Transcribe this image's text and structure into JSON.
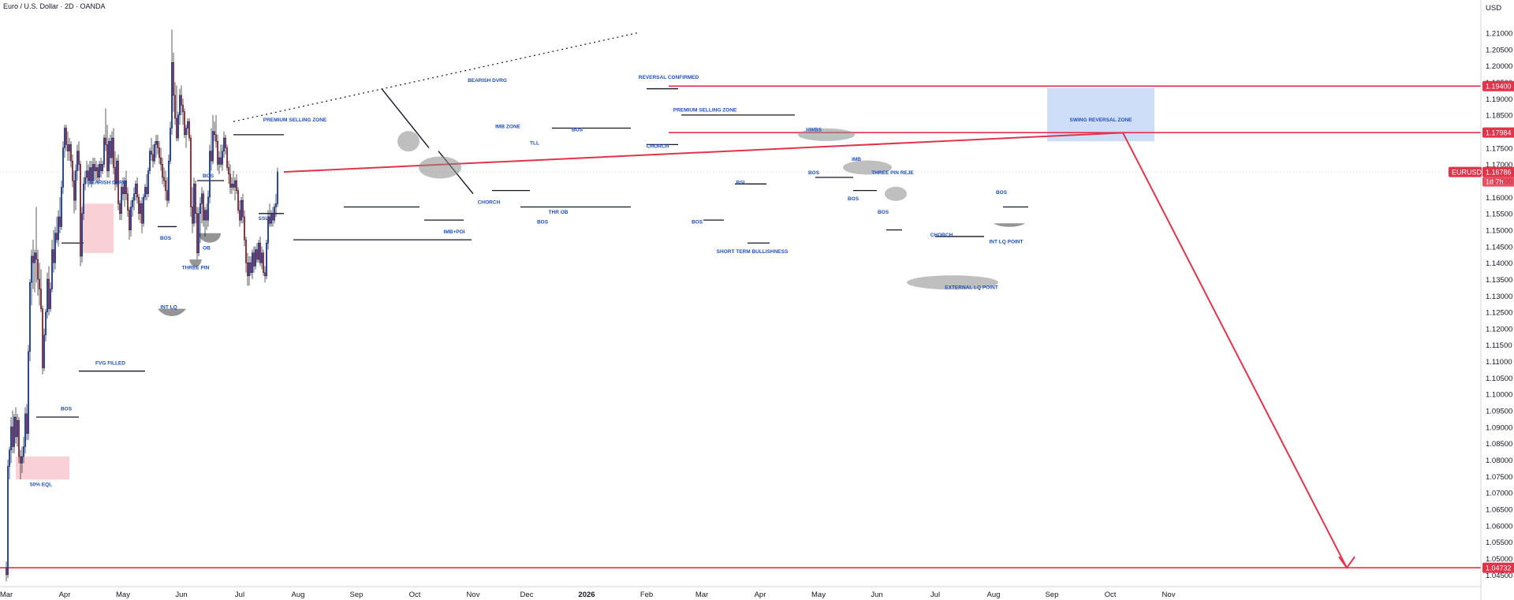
{
  "header": {
    "title": "Euro / U.S. Dollar · 2D · OANDA",
    "currency": "USD"
  },
  "colors": {
    "up": "#2962ff",
    "down": "#e0424f",
    "line": "#e2334a",
    "zone": "#c5d8f8",
    "fvg": "#f8c9cc",
    "text": "#131722",
    "label_blue": "#1e4fc0"
  },
  "chart_data": {
    "type": "candlestick",
    "symbol": "EURUSD",
    "y_ticks": [
      "1.21000",
      "1.20500",
      "1.20000",
      "1.19500",
      "1.19000",
      "1.18500",
      "1.18000",
      "1.17500",
      "1.17000",
      "1.16500",
      "1.16000",
      "1.15500",
      "1.15000",
      "1.14500",
      "1.14000",
      "1.13500",
      "1.13000",
      "1.12500",
      "1.12000",
      "1.11500",
      "1.11000",
      "1.10500",
      "1.10000",
      "1.09500",
      "1.09000",
      "1.08500",
      "1.08000",
      "1.07500",
      "1.07000",
      "1.06500",
      "1.06000",
      "1.05500",
      "1.05000",
      "1.04500"
    ],
    "ylim": [
      1.0435,
      1.2135
    ],
    "x_labels": [
      "Mar",
      "Apr",
      "May",
      "Jun",
      "Jul",
      "Aug",
      "Sep",
      "Oct",
      "Nov",
      "Dec",
      "2026",
      "Feb",
      "Mar",
      "Apr",
      "May",
      "Jun",
      "Jul",
      "Aug",
      "Sep",
      "Oct",
      "Nov"
    ],
    "x_label_index": [
      0,
      37,
      74,
      111,
      148,
      185,
      222,
      259,
      296,
      330,
      368,
      406,
      441,
      478,
      515,
      552,
      589,
      626,
      663,
      700,
      737
    ],
    "price_tags": [
      {
        "text": "1.19400",
        "value": 1.194
      },
      {
        "text": "1.17984",
        "value": 1.17984
      },
      {
        "text": "1.16786",
        "value": 1.16786
      },
      {
        "text": "1.04732",
        "value": 1.04732
      }
    ],
    "symbol_tag": "EURUSD",
    "countdown": "1d 7h",
    "current_price": 1.16786,
    "candles": [
      [
        1.0472,
        1.0492,
        1.0432,
        1.0452
      ],
      [
        1.0452,
        1.0802,
        1.0442,
        1.0782
      ],
      [
        1.0782,
        1.0842,
        1.0742,
        1.0832
      ],
      [
        1.0832,
        1.0932,
        1.0792,
        1.0902
      ],
      [
        1.0902,
        1.0952,
        1.0822,
        1.0842
      ],
      [
        1.0842,
        1.0942,
        1.0822,
        1.0932
      ],
      [
        1.0932,
        1.0962,
        1.0852,
        1.0872
      ],
      [
        1.0872,
        1.0942,
        1.0842,
        1.0922
      ],
      [
        1.0922,
        1.0932,
        1.0792,
        1.0812
      ],
      [
        1.0812,
        1.0832,
        1.0742,
        1.0792
      ],
      [
        1.0792,
        1.0842,
        1.0762,
        1.0812
      ],
      [
        1.0812,
        1.0872,
        1.0792,
        1.0842
      ],
      [
        1.0842,
        1.0962,
        1.0822,
        1.0942
      ],
      [
        1.0942,
        1.0972,
        1.0862,
        1.0882
      ],
      [
        1.0882,
        1.1152,
        1.0862,
        1.1132
      ],
      [
        1.1132,
        1.1352,
        1.1102,
        1.1342
      ],
      [
        1.1342,
        1.1442,
        1.1272,
        1.1422
      ],
      [
        1.1422,
        1.1472,
        1.1322,
        1.1402
      ],
      [
        1.1402,
        1.1442,
        1.1312,
        1.1432
      ],
      [
        1.1432,
        1.1572,
        1.1342,
        1.1412
      ],
      [
        1.1412,
        1.1442,
        1.1302,
        1.1352
      ],
      [
        1.1352,
        1.1402,
        1.1272,
        1.1322
      ],
      [
        1.1322,
        1.1382,
        1.1252,
        1.1262
      ],
      [
        1.1262,
        1.1272,
        1.1062,
        1.1082
      ],
      [
        1.1082,
        1.1202,
        1.1072,
        1.1182
      ],
      [
        1.1182,
        1.1262,
        1.1162,
        1.1252
      ],
      [
        1.1252,
        1.1372,
        1.1232,
        1.1352
      ],
      [
        1.1352,
        1.1392,
        1.1242,
        1.1262
      ],
      [
        1.1262,
        1.1342,
        1.1252,
        1.1322
      ],
      [
        1.1322,
        1.1472,
        1.1312,
        1.1442
      ],
      [
        1.1442,
        1.1502,
        1.1372,
        1.1402
      ],
      [
        1.1402,
        1.1512,
        1.1382,
        1.1492
      ],
      [
        1.1492,
        1.1542,
        1.1462,
        1.1472
      ],
      [
        1.1472,
        1.1562,
        1.1452,
        1.1542
      ],
      [
        1.1542,
        1.1602,
        1.1492,
        1.1512
      ],
      [
        1.1512,
        1.1652,
        1.1502,
        1.1632
      ],
      [
        1.1632,
        1.1772,
        1.1612,
        1.1752
      ],
      [
        1.1752,
        1.1822,
        1.1722,
        1.1812
      ],
      [
        1.1812,
        1.1822,
        1.1742,
        1.1762
      ],
      [
        1.1762,
        1.1802,
        1.1712,
        1.1742
      ],
      [
        1.1742,
        1.1782,
        1.1712,
        1.1762
      ],
      [
        1.1762,
        1.1772,
        1.1692,
        1.1712
      ],
      [
        1.1712,
        1.1732,
        1.1632,
        1.1652
      ],
      [
        1.1652,
        1.1682,
        1.1552,
        1.1592
      ],
      [
        1.1592,
        1.1702,
        1.1562,
        1.1682
      ],
      [
        1.1682,
        1.1762,
        1.1652,
        1.1742
      ],
      [
        1.1742,
        1.1772,
        1.1682,
        1.1702
      ],
      [
        1.1702,
        1.1712,
        1.1392,
        1.1422
      ],
      [
        1.1422,
        1.1572,
        1.1402,
        1.1552
      ],
      [
        1.1552,
        1.1662,
        1.1532,
        1.1642
      ],
      [
        1.1642,
        1.1682,
        1.1622,
        1.1662
      ],
      [
        1.1662,
        1.1712,
        1.1642,
        1.1682
      ],
      [
        1.1682,
        1.1702,
        1.1632,
        1.1652
      ],
      [
        1.1652,
        1.1712,
        1.1642,
        1.1692
      ],
      [
        1.1692,
        1.1712,
        1.1632,
        1.1652
      ],
      [
        1.1652,
        1.1722,
        1.1642,
        1.1702
      ],
      [
        1.1702,
        1.1722,
        1.1652,
        1.1682
      ],
      [
        1.1682,
        1.1712,
        1.1652,
        1.1692
      ],
      [
        1.1692,
        1.1702,
        1.1642,
        1.1662
      ],
      [
        1.1662,
        1.1712,
        1.1652,
        1.1702
      ],
      [
        1.1702,
        1.1722,
        1.1662,
        1.1682
      ],
      [
        1.1682,
        1.1712,
        1.1672,
        1.1702
      ],
      [
        1.1702,
        1.1792,
        1.1692,
        1.1782
      ],
      [
        1.1782,
        1.1872,
        1.1742,
        1.1762
      ],
      [
        1.1762,
        1.1822,
        1.1662,
        1.1682
      ],
      [
        1.1682,
        1.1782,
        1.1662,
        1.1772
      ],
      [
        1.1772,
        1.1792,
        1.1702,
        1.1722
      ],
      [
        1.1722,
        1.1802,
        1.1702,
        1.1782
      ],
      [
        1.1782,
        1.1812,
        1.1672,
        1.1692
      ],
      [
        1.1692,
        1.1742,
        1.1622,
        1.1642
      ],
      [
        1.1642,
        1.1722,
        1.1632,
        1.1712
      ],
      [
        1.1712,
        1.1732,
        1.1562,
        1.1582
      ],
      [
        1.1582,
        1.1592,
        1.1532,
        1.1552
      ],
      [
        1.1552,
        1.1642,
        1.1532,
        1.1632
      ],
      [
        1.1632,
        1.1662,
        1.1592,
        1.1612
      ],
      [
        1.1612,
        1.1662,
        1.1572,
        1.1652
      ],
      [
        1.1652,
        1.1682,
        1.1592,
        1.1612
      ],
      [
        1.1612,
        1.1632,
        1.1542,
        1.1562
      ],
      [
        1.1562,
        1.1572,
        1.1472,
        1.1502
      ],
      [
        1.1502,
        1.1592,
        1.1482,
        1.1572
      ],
      [
        1.1572,
        1.1602,
        1.1542,
        1.1592
      ],
      [
        1.1592,
        1.1632,
        1.1562,
        1.1612
      ],
      [
        1.1612,
        1.1652,
        1.1592,
        1.1642
      ],
      [
        1.1642,
        1.1662,
        1.1582,
        1.1602
      ],
      [
        1.1602,
        1.1612,
        1.1532,
        1.1552
      ],
      [
        1.1552,
        1.1592,
        1.1522,
        1.1582
      ],
      [
        1.1582,
        1.1602,
        1.1492,
        1.1522
      ],
      [
        1.1522,
        1.1612,
        1.1512,
        1.1602
      ],
      [
        1.1602,
        1.1642,
        1.1592,
        1.1632
      ],
      [
        1.1632,
        1.1672,
        1.1592,
        1.1612
      ],
      [
        1.1612,
        1.1692,
        1.1602,
        1.1682
      ],
      [
        1.1682,
        1.1752,
        1.1672,
        1.1742
      ],
      [
        1.1742,
        1.1782,
        1.1712,
        1.1732
      ],
      [
        1.1732,
        1.1762,
        1.1692,
        1.1712
      ],
      [
        1.1712,
        1.1772,
        1.1702,
        1.1762
      ],
      [
        1.1762,
        1.1792,
        1.1722,
        1.1772
      ],
      [
        1.1772,
        1.1792,
        1.1732,
        1.1752
      ],
      [
        1.1752,
        1.1772,
        1.1702,
        1.1722
      ],
      [
        1.1722,
        1.1752,
        1.1682,
        1.1702
      ],
      [
        1.1702,
        1.1722,
        1.1642,
        1.1662
      ],
      [
        1.1662,
        1.1692,
        1.1632,
        1.1652
      ],
      [
        1.1652,
        1.1682,
        1.1592,
        1.1622
      ],
      [
        1.1622,
        1.1662,
        1.1572,
        1.1592
      ],
      [
        1.1592,
        1.1732,
        1.1582,
        1.1712
      ],
      [
        1.1712,
        1.1832,
        1.1702,
        1.1812
      ],
      [
        1.1812,
        1.2112,
        1.1792,
        1.2012
      ],
      [
        1.2012,
        1.2042,
        1.1862,
        1.1912
      ],
      [
        1.1912,
        1.1952,
        1.1822,
        1.1842
      ],
      [
        1.1842,
        1.1942,
        1.1772,
        1.1782
      ],
      [
        1.1782,
        1.1862,
        1.1772,
        1.1852
      ],
      [
        1.1852,
        1.1932,
        1.1822,
        1.1912
      ],
      [
        1.1912,
        1.1942,
        1.1852,
        1.1882
      ],
      [
        1.1882,
        1.1902,
        1.1822,
        1.1862
      ],
      [
        1.1862,
        1.1872,
        1.1782,
        1.1792
      ],
      [
        1.1792,
        1.1822,
        1.1752,
        1.1812
      ],
      [
        1.1812,
        1.1842,
        1.1792,
        1.1832
      ],
      [
        1.1832,
        1.1842,
        1.1772,
        1.1782
      ],
      [
        1.1782,
        1.1792,
        1.1542,
        1.1572
      ],
      [
        1.1572,
        1.1632,
        1.1492,
        1.1522
      ],
      [
        1.1522,
        1.1662,
        1.1512,
        1.1642
      ],
      [
        1.1642,
        1.1652,
        1.1522,
        1.1552
      ],
      [
        1.1552,
        1.1572,
        1.1412,
        1.1432
      ],
      [
        1.1432,
        1.1572,
        1.1422,
        1.1552
      ],
      [
        1.1552,
        1.1602,
        1.1462,
        1.1582
      ],
      [
        1.1582,
        1.1632,
        1.1522,
        1.1612
      ],
      [
        1.1612,
        1.1622,
        1.1512,
        1.1532
      ],
      [
        1.1532,
        1.1572,
        1.1482,
        1.1562
      ],
      [
        1.1562,
        1.1582,
        1.1502,
        1.1532
      ],
      [
        1.1532,
        1.1622,
        1.1512,
        1.1602
      ],
      [
        1.1602,
        1.1762,
        1.1582,
        1.1742
      ],
      [
        1.1742,
        1.1812,
        1.1682,
        1.1712
      ],
      [
        1.1712,
        1.1852,
        1.1702,
        1.1802
      ],
      [
        1.1802,
        1.1832,
        1.1772,
        1.1792
      ],
      [
        1.1792,
        1.1852,
        1.1752,
        1.1772
      ],
      [
        1.1772,
        1.1792,
        1.1682,
        1.1702
      ],
      [
        1.1702,
        1.1742,
        1.1672,
        1.1722
      ],
      [
        1.1722,
        1.1762,
        1.1692,
        1.1702
      ],
      [
        1.1702,
        1.1762,
        1.1682,
        1.1742
      ],
      [
        1.1742,
        1.1802,
        1.1722,
        1.1782
      ],
      [
        1.1782,
        1.1792,
        1.1732,
        1.1752
      ],
      [
        1.1752,
        1.1762,
        1.1682,
        1.1692
      ],
      [
        1.1692,
        1.1712,
        1.1642,
        1.1672
      ],
      [
        1.1672,
        1.1702,
        1.1612,
        1.1632
      ],
      [
        1.1632,
        1.1662,
        1.1612,
        1.1642
      ],
      [
        1.1642,
        1.1682,
        1.1622,
        1.1632
      ],
      [
        1.1632,
        1.1662,
        1.1592,
        1.1652
      ],
      [
        1.1652,
        1.1672,
        1.1612,
        1.1622
      ],
      [
        1.1622,
        1.1632,
        1.1552,
        1.1562
      ],
      [
        1.1562,
        1.1592,
        1.1512,
        1.1532
      ],
      [
        1.1532,
        1.1602,
        1.1522,
        1.1592
      ],
      [
        1.1592,
        1.1612,
        1.1522,
        1.1542
      ],
      [
        1.1542,
        1.1562,
        1.1452,
        1.1472
      ],
      [
        1.1472,
        1.1482,
        1.1372,
        1.1402
      ],
      [
        1.1402,
        1.1432,
        1.1332,
        1.1362
      ],
      [
        1.1362,
        1.1422,
        1.1332,
        1.1402
      ],
      [
        1.1402,
        1.1422,
        1.1362,
        1.1372
      ],
      [
        1.1372,
        1.1442,
        1.1352,
        1.1432
      ],
      [
        1.1432,
        1.1452,
        1.1372,
        1.1392
      ],
      [
        1.1392,
        1.1452,
        1.1382,
        1.1442
      ],
      [
        1.1442,
        1.1462,
        1.1402,
        1.1412
      ],
      [
        1.1412,
        1.1472,
        1.1402,
        1.1462
      ],
      [
        1.1462,
        1.1482,
        1.1392,
        1.1402
      ],
      [
        1.1402,
        1.1452,
        1.1382,
        1.1432
      ],
      [
        1.1432,
        1.1442,
        1.1362,
        1.1372
      ],
      [
        1.1372,
        1.1392,
        1.1342,
        1.1362
      ],
      [
        1.1362,
        1.1472,
        1.1352,
        1.1462
      ],
      [
        1.1462,
        1.1562,
        1.1442,
        1.1542
      ],
      [
        1.1542,
        1.1582,
        1.1512,
        1.1522
      ],
      [
        1.1522,
        1.1562,
        1.1512,
        1.1552
      ],
      [
        1.1552,
        1.1572,
        1.1512,
        1.1532
      ],
      [
        1.1532,
        1.1582,
        1.1522,
        1.1572
      ],
      [
        1.1572,
        1.1612,
        1.1542,
        1.1582
      ],
      [
        1.1582,
        1.1692,
        1.1572,
        1.1679
      ]
    ],
    "levels": [
      {
        "value": 1.04732,
        "style": "red-line"
      },
      {
        "value": 1.194,
        "style": "red-line",
        "from_index": 420
      },
      {
        "value": 1.17984,
        "style": "red-line",
        "from_index": 420
      }
    ],
    "zones": [
      {
        "name": "SWING REVERSAL ZONE",
        "from_index": 660,
        "to_index": 728,
        "top": 1.1935,
        "bottom": 1.1772,
        "color": "blue"
      },
      {
        "name": "bearish-ob",
        "from_index": 48,
        "to_index": 68,
        "top": 1.1582,
        "bottom": 1.1432,
        "color": "pink"
      },
      {
        "name": "50% EQL zone",
        "from_index": 6,
        "to_index": 40,
        "top": 1.0812,
        "bottom": 1.0742,
        "color": "pink"
      }
    ],
    "annotations": [
      "PREMIUM SELLING ZONE",
      "BEARISH DVRG",
      "IMB ZONE",
      "TLL",
      "BOS",
      "CHORCH",
      "THR OB",
      "IMB+POI",
      "SSL",
      "BOS",
      "OB",
      "THREE PIN",
      "INT LQ",
      "FVG FILLED",
      "BOS",
      "BOS",
      "50% EQL",
      "BEARISH DVRG",
      "REVERSAL CONFIRMED",
      "PREMIUM SELLING ZONE",
      "BOS",
      "CHORCH",
      "BSL",
      "BOS",
      "SHORT TERM BULLISHNESS",
      "HWBS",
      "IMB",
      "BOS",
      "THREE PIN REJE",
      "BOS",
      "BOS",
      "CHORCH",
      "EXTERNAL LQ POINT",
      "BOS",
      "INT LQ POINT",
      "SWING REVERSAL ZONE"
    ]
  }
}
